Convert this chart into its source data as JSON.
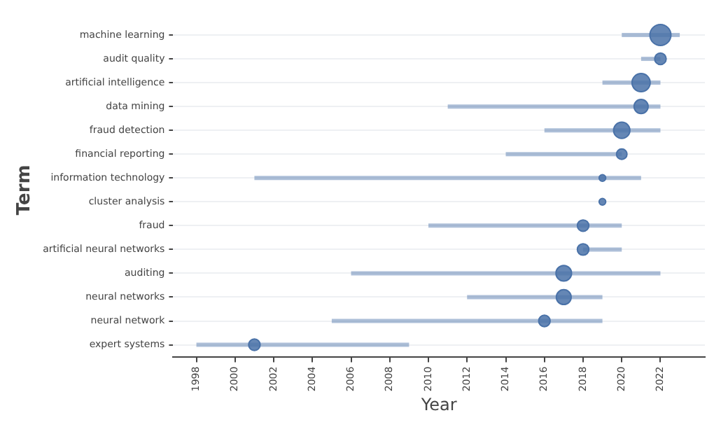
{
  "chart_data": {
    "type": "bubble",
    "orientation": "horizontal",
    "xlabel": "Year",
    "ylabel": "Term",
    "grid": "y",
    "categories": [
      "machine learning",
      "audit quality",
      "artificial intelligence",
      "data mining",
      "fraud detection",
      "financial reporting",
      "information technology",
      "cluster analysis",
      "fraud",
      "artificial neural networks",
      "auditing",
      "neural networks",
      "neural network",
      "expert systems"
    ],
    "xlim": [
      1996.8,
      2024.3
    ],
    "xticks": [
      1998,
      2000,
      2002,
      2004,
      2006,
      2008,
      2010,
      2012,
      2014,
      2016,
      2018,
      2020,
      2022
    ],
    "series": [
      {
        "color": "#4a72a8",
        "values": [
          2022,
          2022,
          2021,
          2021,
          2020,
          2020,
          2019,
          2019,
          2018,
          2018,
          2017,
          2017,
          2016,
          2001
        ],
        "errors": [
          [
            2020,
            2023
          ],
          [
            2021,
            2022
          ],
          [
            2019,
            2022
          ],
          [
            2011,
            2022
          ],
          [
            2016,
            2022
          ],
          [
            2014,
            2020
          ],
          [
            2001,
            2021
          ],
          null,
          [
            2010,
            2020
          ],
          [
            2018,
            2020
          ],
          [
            2006,
            2022
          ],
          [
            2012,
            2019
          ],
          [
            2005,
            2019
          ],
          [
            1998,
            2009
          ]
        ],
        "sizes": [
          1,
          0.3,
          0.75,
          0.45,
          0.6,
          0.25,
          0.1,
          0.1,
          0.3,
          0.3,
          0.55,
          0.5,
          0.3,
          0.3
        ]
      }
    ]
  }
}
